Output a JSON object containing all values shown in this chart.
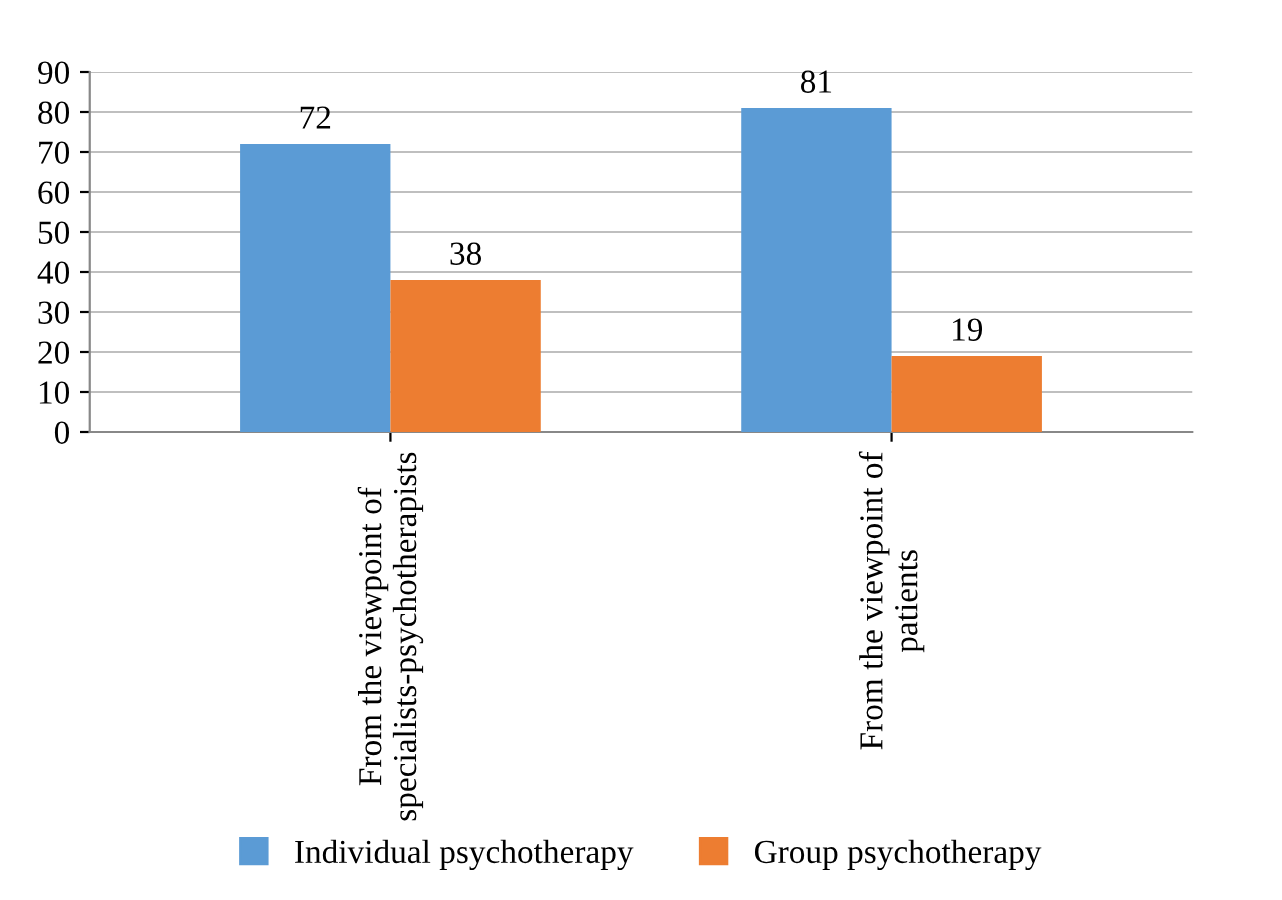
{
  "chart_data": {
    "type": "bar",
    "categories": [
      "From the viewpoint of\nspecialists-psychotherapists",
      "From the viewpoint of\npatients"
    ],
    "series": [
      {
        "name": "Individual psychotherapy",
        "color": "#5b9bd5",
        "values": [
          72,
          81
        ]
      },
      {
        "name": "Group psychotherapy",
        "color": "#ed7d31",
        "values": [
          38,
          19
        ]
      }
    ],
    "ylim": [
      0,
      90
    ],
    "yticks": [
      0,
      10,
      20,
      30,
      40,
      50,
      60,
      70,
      80,
      90
    ],
    "grid": "y",
    "legend": "bottom",
    "data_labels": true
  }
}
